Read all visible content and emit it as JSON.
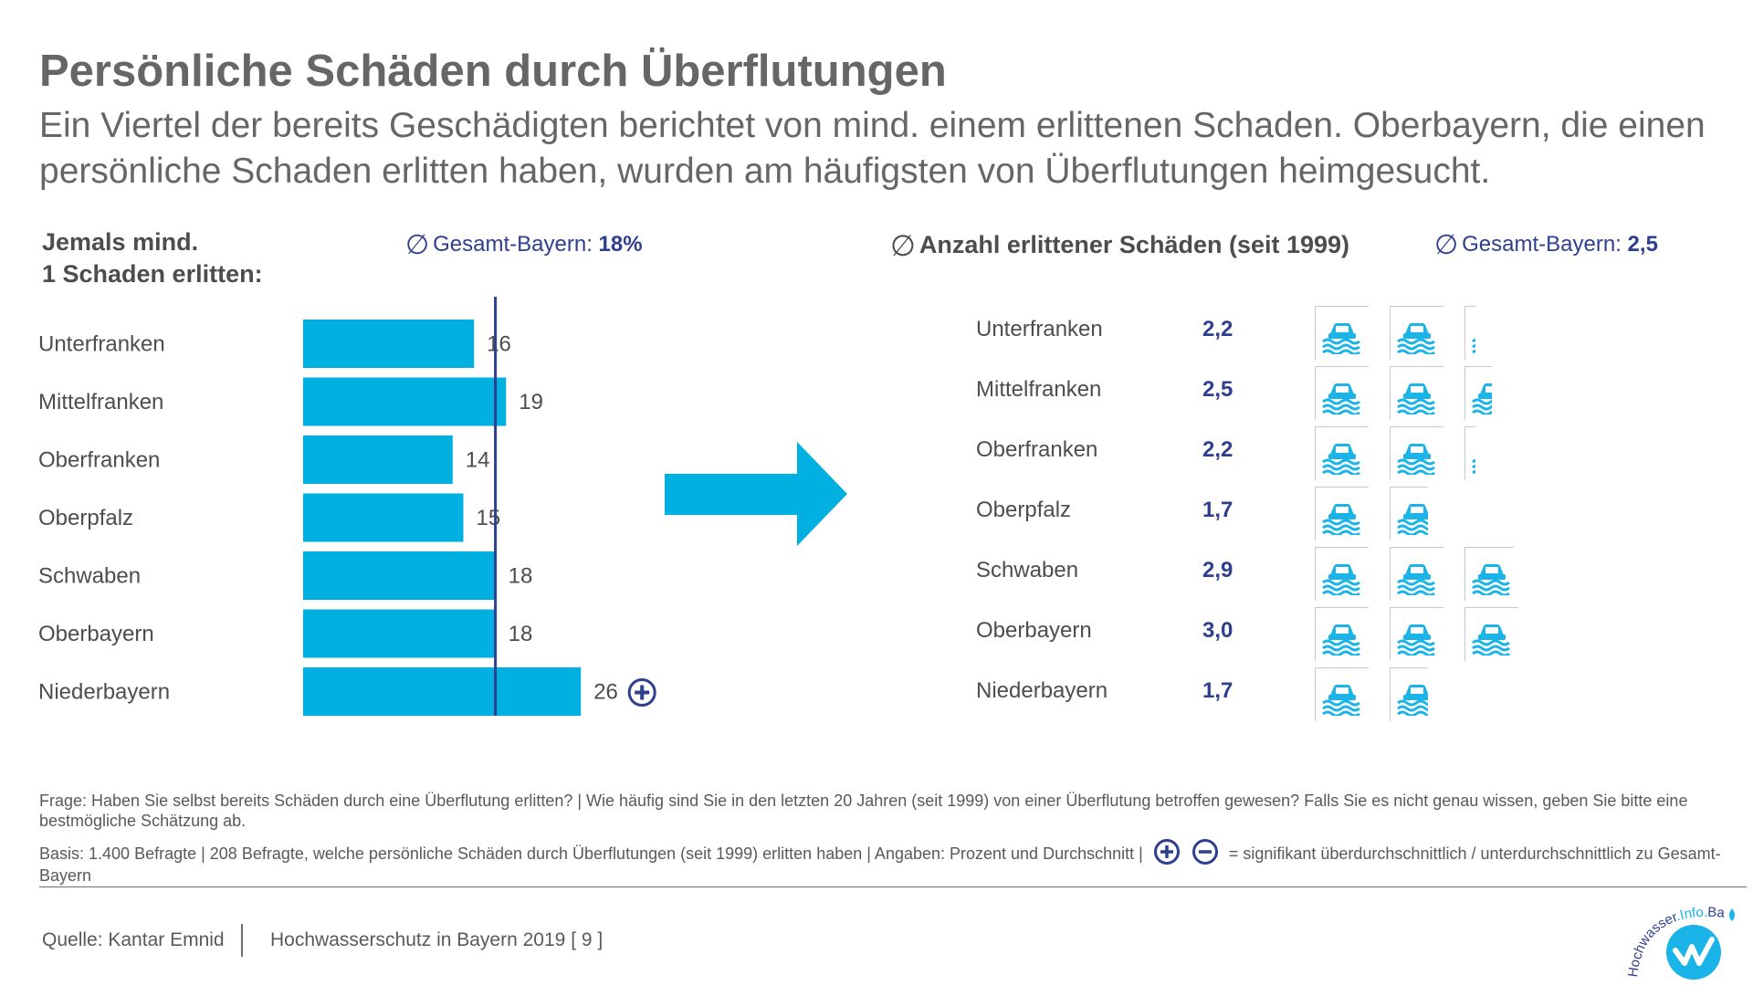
{
  "header": {
    "title": "Persönliche Schäden durch Überflutungen",
    "subtitle": "Ein Viertel der bereits Geschädigten berichtet von mind. einem erlittenen Schaden. Oberbayern, die einen persönliche Schaden erlitten haben, wurden am häufigsten von Überflutungen heimgesucht."
  },
  "left_panel": {
    "heading": "Jemals mind.\n1 Schaden erlitten:",
    "average_label": "Gesamt-Bayern:",
    "average_value": "18%"
  },
  "right_panel": {
    "heading": "Anzahl erlittener Schäden (seit 1999)",
    "average_label": "Gesamt-Bayern:",
    "average_value": "2,5"
  },
  "chart_data": [
    {
      "type": "bar",
      "orientation": "horizontal",
      "categories": [
        "Unterfranken",
        "Mittelfranken",
        "Oberfranken",
        "Oberpfalz",
        "Schwaben",
        "Oberbayern",
        "Niederbayern"
      ],
      "values": [
        16,
        19,
        14,
        15,
        18,
        18,
        26
      ],
      "value_labels": [
        "16",
        "19",
        "14",
        "15",
        "18",
        "18",
        "26"
      ],
      "reference_line": 18,
      "significance": [
        "",
        "",
        "",
        "",
        "",
        "",
        "plus"
      ],
      "unit": "%",
      "bar_color": "#00b0e0",
      "reference_color": "#2e3f8f",
      "icon": "plus-circle-icon"
    },
    {
      "type": "table",
      "categories": [
        "Unterfranken",
        "Mittelfranken",
        "Oberfranken",
        "Oberpfalz",
        "Schwaben",
        "Oberbayern",
        "Niederbayern"
      ],
      "values": [
        2.2,
        2.5,
        2.2,
        1.7,
        2.9,
        3.0,
        1.7
      ],
      "value_labels": [
        "2,2",
        "2,5",
        "2,2",
        "1,7",
        "2,9",
        "3,0",
        "1,7"
      ],
      "icon": "flooded-car-icon",
      "icon_color": "#1ab4e8",
      "value_color": "#2e3f8f"
    }
  ],
  "arrow": {
    "icon": "arrow-right-icon",
    "color": "#00b0e0"
  },
  "footnotes": {
    "question": "Frage: Haben Sie selbst bereits Schäden durch eine Überflutung erlitten?  |  Wie häufig sind Sie in den letzten 20  Jahren (seit 1999) von einer Überflutung betroffen gewesen? Falls Sie es nicht genau wissen, geben Sie bitte eine bestmögliche Schätzung ab.",
    "basis_prefix": "Basis: 1.400 Befragte  | 208 Befragte, welche persönliche Schäden durch Überflutungen (seit 1999) erlitten haben  |  Angaben: Prozent und Durchschnitt |",
    "basis_suffix": "= signifikant überdurchschnittlich / unterdurchschnittlich zu Gesamt-Bayern",
    "plus_icon": "plus-circle-icon",
    "minus_icon": "minus-circle-icon"
  },
  "footer": {
    "source": "Quelle: Kantar Emnid",
    "publication": "Hochwasserschutz in Bayern 2019",
    "page": "[ 9 ]",
    "logo_text_1": "Hochwasser",
    "logo_text_2": ".Info.",
    "logo_text_3": "Bayern",
    "logo_color": "#1ab4e8"
  }
}
